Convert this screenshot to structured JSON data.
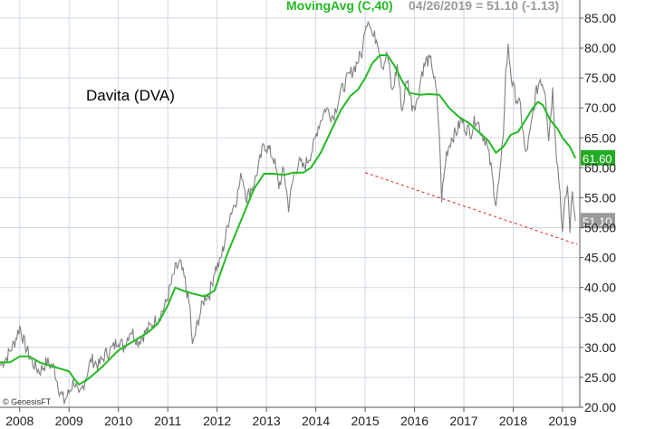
{
  "chart_data": {
    "type": "line",
    "title": "Davita (DVA)",
    "legend": {
      "ma_label": "MovingAvg (C,40)",
      "quote": "04/26/2019 = 51.10 (-1.13)"
    },
    "credit": "© GenesisFT",
    "y_axis": {
      "min": 20,
      "max": 85,
      "ticks": [
        "20.00",
        "25.00",
        "30.00",
        "35.00",
        "40.00",
        "45.00",
        "50.00",
        "55.00",
        "60.00",
        "65.00",
        "70.00",
        "75.00",
        "80.00",
        "85.00"
      ],
      "position": "right",
      "grid": true
    },
    "x_axis": {
      "min": 2007.6,
      "max": 2019.35,
      "ticks": [
        "2008",
        "2009",
        "2010",
        "2011",
        "2012",
        "2013",
        "2014",
        "2015",
        "2016",
        "2017",
        "2018",
        "2019"
      ],
      "grid": true
    },
    "badges": {
      "ma_value": "61.60",
      "price_value": "51.10"
    },
    "series": [
      {
        "name": "DVA",
        "kind": "price",
        "points": [
          [
            2007.6,
            27.0
          ],
          [
            2007.75,
            28.5
          ],
          [
            2007.9,
            31.0
          ],
          [
            2008.0,
            33.5
          ],
          [
            2008.1,
            30.5
          ],
          [
            2008.25,
            27.5
          ],
          [
            2008.4,
            26.0
          ],
          [
            2008.55,
            27.5
          ],
          [
            2008.7,
            26.5
          ],
          [
            2008.8,
            23.0
          ],
          [
            2008.9,
            21.0
          ],
          [
            2009.0,
            22.5
          ],
          [
            2009.1,
            24.5
          ],
          [
            2009.2,
            21.5
          ],
          [
            2009.3,
            24.0
          ],
          [
            2009.45,
            28.0
          ],
          [
            2009.6,
            27.0
          ],
          [
            2009.75,
            29.0
          ],
          [
            2009.9,
            30.0
          ],
          [
            2010.0,
            31.5
          ],
          [
            2010.1,
            30.0
          ],
          [
            2010.25,
            33.0
          ],
          [
            2010.4,
            31.0
          ],
          [
            2010.55,
            32.5
          ],
          [
            2010.7,
            34.0
          ],
          [
            2010.85,
            35.5
          ],
          [
            2010.95,
            37.0
          ],
          [
            2011.05,
            40.0
          ],
          [
            2011.15,
            43.0
          ],
          [
            2011.25,
            44.0
          ],
          [
            2011.35,
            41.0
          ],
          [
            2011.45,
            36.5
          ],
          [
            2011.5,
            30.0
          ],
          [
            2011.6,
            34.0
          ],
          [
            2011.75,
            38.5
          ],
          [
            2011.85,
            39.0
          ],
          [
            2011.95,
            43.0
          ],
          [
            2012.05,
            44.0
          ],
          [
            2012.15,
            47.5
          ],
          [
            2012.25,
            52.0
          ],
          [
            2012.4,
            55.0
          ],
          [
            2012.5,
            59.0
          ],
          [
            2012.6,
            55.0
          ],
          [
            2012.75,
            57.5
          ],
          [
            2012.85,
            60.5
          ],
          [
            2012.95,
            64.0
          ],
          [
            2013.05,
            63.0
          ],
          [
            2013.15,
            61.5
          ],
          [
            2013.25,
            57.0
          ],
          [
            2013.35,
            59.5
          ],
          [
            2013.45,
            53.5
          ],
          [
            2013.55,
            58.5
          ],
          [
            2013.65,
            61.0
          ],
          [
            2013.75,
            60.0
          ],
          [
            2013.85,
            61.5
          ],
          [
            2013.95,
            63.5
          ],
          [
            2014.05,
            67.0
          ],
          [
            2014.2,
            70.0
          ],
          [
            2014.35,
            68.5
          ],
          [
            2014.5,
            72.5
          ],
          [
            2014.65,
            75.0
          ],
          [
            2014.8,
            77.0
          ],
          [
            2014.95,
            79.5
          ],
          [
            2015.0,
            84.0
          ],
          [
            2015.08,
            85.0
          ],
          [
            2015.15,
            82.0
          ],
          [
            2015.25,
            81.5
          ],
          [
            2015.35,
            77.0
          ],
          [
            2015.45,
            79.0
          ],
          [
            2015.55,
            72.5
          ],
          [
            2015.65,
            77.0
          ],
          [
            2015.75,
            69.5
          ],
          [
            2015.85,
            75.0
          ],
          [
            2015.95,
            70.5
          ],
          [
            2016.05,
            71.0
          ],
          [
            2016.15,
            76.0
          ],
          [
            2016.25,
            78.0
          ],
          [
            2016.35,
            77.5
          ],
          [
            2016.45,
            72.0
          ],
          [
            2016.5,
            66.0
          ],
          [
            2016.55,
            55.0
          ],
          [
            2016.65,
            62.5
          ],
          [
            2016.75,
            65.0
          ],
          [
            2016.85,
            66.0
          ],
          [
            2016.95,
            68.0
          ],
          [
            2017.05,
            66.5
          ],
          [
            2017.15,
            66.0
          ],
          [
            2017.25,
            68.5
          ],
          [
            2017.35,
            66.0
          ],
          [
            2017.45,
            64.5
          ],
          [
            2017.55,
            60.0
          ],
          [
            2017.65,
            54.0
          ],
          [
            2017.75,
            60.0
          ],
          [
            2017.8,
            66.0
          ],
          [
            2017.85,
            76.0
          ],
          [
            2017.9,
            80.0
          ],
          [
            2017.98,
            74.0
          ],
          [
            2018.05,
            72.0
          ],
          [
            2018.15,
            70.0
          ],
          [
            2018.25,
            62.0
          ],
          [
            2018.35,
            66.0
          ],
          [
            2018.45,
            72.0
          ],
          [
            2018.55,
            75.0
          ],
          [
            2018.65,
            73.0
          ],
          [
            2018.72,
            65.0
          ],
          [
            2018.8,
            73.0
          ],
          [
            2018.88,
            62.0
          ],
          [
            2018.95,
            56.0
          ],
          [
            2019.0,
            49.0
          ],
          [
            2019.05,
            54.0
          ],
          [
            2019.1,
            57.0
          ],
          [
            2019.15,
            50.0
          ],
          [
            2019.2,
            56.0
          ],
          [
            2019.26,
            51.1
          ]
        ]
      },
      {
        "name": "MovingAvg (C,40)",
        "kind": "moving-average",
        "points": [
          [
            2007.6,
            27.5
          ],
          [
            2007.8,
            27.5
          ],
          [
            2008.0,
            28.5
          ],
          [
            2008.2,
            28.5
          ],
          [
            2008.4,
            27.5
          ],
          [
            2008.6,
            27.0
          ],
          [
            2008.8,
            26.5
          ],
          [
            2009.0,
            26.0
          ],
          [
            2009.1,
            24.8
          ],
          [
            2009.2,
            23.8
          ],
          [
            2009.35,
            24.5
          ],
          [
            2009.5,
            25.5
          ],
          [
            2009.7,
            27.0
          ],
          [
            2009.85,
            28.3
          ],
          [
            2010.0,
            29.5
          ],
          [
            2010.2,
            30.5
          ],
          [
            2010.4,
            31.5
          ],
          [
            2010.6,
            32.5
          ],
          [
            2010.8,
            34.0
          ],
          [
            2011.0,
            37.0
          ],
          [
            2011.15,
            40.0
          ],
          [
            2011.3,
            39.5
          ],
          [
            2011.5,
            39.0
          ],
          [
            2011.75,
            38.5
          ],
          [
            2011.95,
            39.5
          ],
          [
            2012.05,
            42.0
          ],
          [
            2012.2,
            45.5
          ],
          [
            2012.35,
            48.5
          ],
          [
            2012.55,
            52.5
          ],
          [
            2012.75,
            56.5
          ],
          [
            2012.95,
            59.0
          ],
          [
            2013.15,
            59.0
          ],
          [
            2013.35,
            58.8
          ],
          [
            2013.55,
            59.2
          ],
          [
            2013.75,
            59.2
          ],
          [
            2013.9,
            60.0
          ],
          [
            2014.1,
            62.5
          ],
          [
            2014.3,
            66.0
          ],
          [
            2014.5,
            69.5
          ],
          [
            2014.7,
            72.0
          ],
          [
            2014.85,
            73.0
          ],
          [
            2015.0,
            75.0
          ],
          [
            2015.15,
            77.5
          ],
          [
            2015.3,
            78.8
          ],
          [
            2015.45,
            78.8
          ],
          [
            2015.6,
            77.0
          ],
          [
            2015.75,
            74.5
          ],
          [
            2015.9,
            72.5
          ],
          [
            2016.1,
            72.2
          ],
          [
            2016.3,
            72.3
          ],
          [
            2016.5,
            72.2
          ],
          [
            2016.7,
            70.0
          ],
          [
            2016.9,
            68.5
          ],
          [
            2017.1,
            67.5
          ],
          [
            2017.3,
            66.0
          ],
          [
            2017.5,
            64.5
          ],
          [
            2017.65,
            62.5
          ],
          [
            2017.8,
            63.5
          ],
          [
            2017.95,
            65.5
          ],
          [
            2018.1,
            66.0
          ],
          [
            2018.25,
            68.0
          ],
          [
            2018.4,
            70.0
          ],
          [
            2018.5,
            71.0
          ],
          [
            2018.6,
            70.5
          ],
          [
            2018.75,
            68.0
          ],
          [
            2018.9,
            66.5
          ],
          [
            2019.0,
            65.0
          ],
          [
            2019.15,
            63.5
          ],
          [
            2019.26,
            61.6
          ]
        ]
      },
      {
        "name": "trendline",
        "kind": "trendline",
        "points": [
          [
            2015.0,
            59.2
          ],
          [
            2019.3,
            47.2
          ]
        ]
      }
    ],
    "colors": {
      "price": "#808080",
      "moving_average": "#22bb22",
      "trendline": "#dd2222",
      "grid": "#cfd8e4",
      "badge_ma": "#22aa22",
      "badge_price": "#9a9a9a"
    }
  }
}
